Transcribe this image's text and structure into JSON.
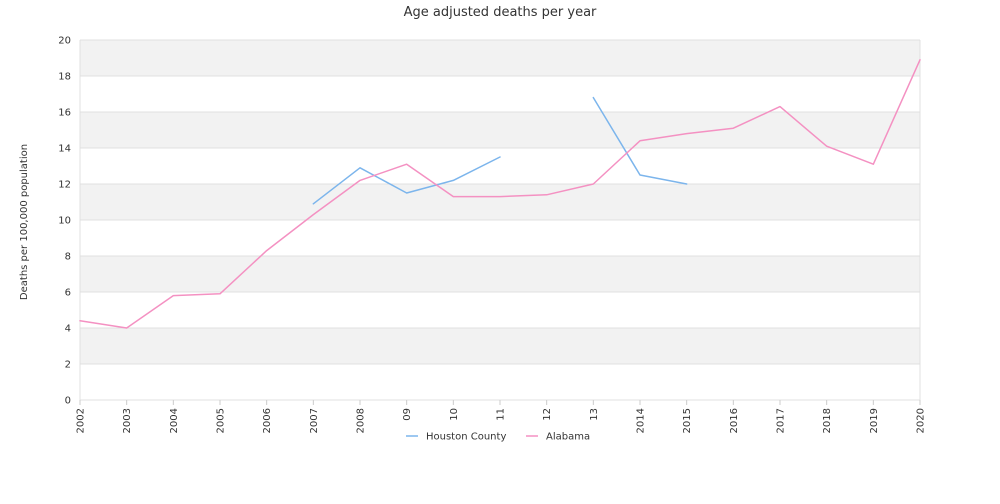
{
  "chart_data": {
    "type": "line",
    "title": "Age adjusted deaths per year",
    "xlabel": "",
    "ylabel": "Deaths per 100,000 population",
    "categories": [
      "2002",
      "2003",
      "2004",
      "2005",
      "2006",
      "2007",
      "2008",
      "09",
      "10",
      "11",
      "12",
      "13",
      "2014",
      "2015",
      "2016",
      "2017",
      "2018",
      "2019",
      "2020"
    ],
    "ylim": [
      0,
      20
    ],
    "yticks": [
      0,
      2,
      4,
      6,
      8,
      10,
      12,
      14,
      16,
      18,
      20
    ],
    "grid": "horizontal alternating bands",
    "legend_position": "bottom-center",
    "series": [
      {
        "name": "Houston County",
        "color": "#7cb5ec",
        "values": [
          null,
          null,
          null,
          null,
          null,
          10.9,
          12.9,
          11.5,
          12.2,
          13.5,
          null,
          16.8,
          12.5,
          12.0,
          null,
          null,
          null,
          null,
          null
        ]
      },
      {
        "name": "Alabama",
        "color": "#f491c2",
        "values": [
          4.4,
          4.0,
          5.8,
          5.9,
          8.3,
          10.3,
          12.2,
          13.1,
          11.3,
          11.3,
          11.4,
          12.0,
          14.4,
          14.8,
          15.1,
          16.3,
          14.1,
          13.1,
          18.9
        ]
      }
    ]
  }
}
